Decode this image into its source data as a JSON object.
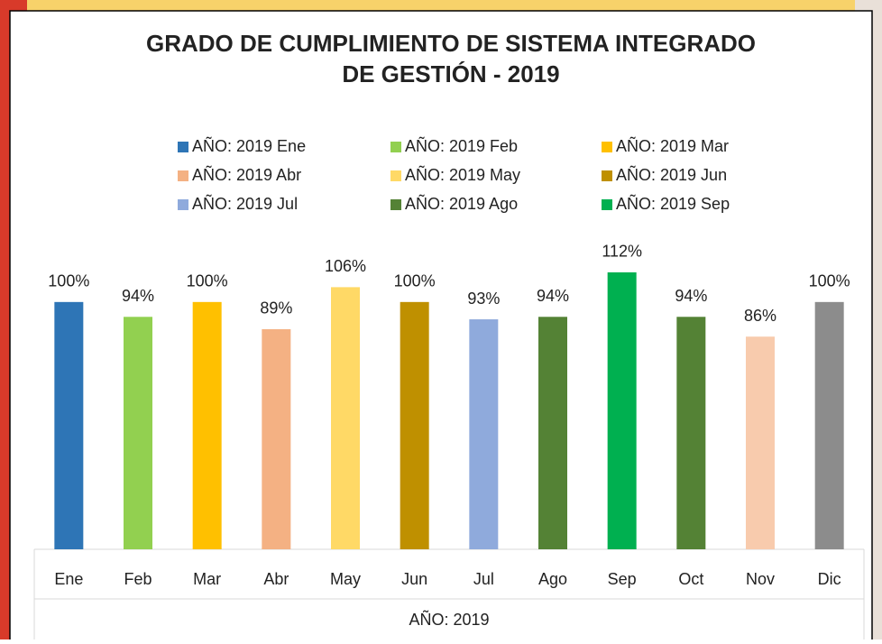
{
  "chart_data": {
    "type": "bar",
    "title": [
      "GRADO DE CUMPLIMIENTO DE SISTEMA INTEGRADO",
      "DE GESTIÓN - 2019"
    ],
    "categories": [
      "Ene",
      "Feb",
      "Mar",
      "Abr",
      "May",
      "Jun",
      "Jul",
      "Ago",
      "Sep",
      "Oct",
      "Nov",
      "Dic"
    ],
    "values": [
      100,
      94,
      100,
      89,
      106,
      100,
      93,
      94,
      112,
      94,
      86,
      100
    ],
    "value_labels": [
      "100%",
      "94%",
      "100%",
      "89%",
      "106%",
      "100%",
      "93%",
      "94%",
      "112%",
      "94%",
      "86%",
      "100%"
    ],
    "colors": [
      "#2e75b6",
      "#92d050",
      "#ffc000",
      "#f4b183",
      "#ffd966",
      "#bf9000",
      "#8faadc",
      "#548235",
      "#00b050",
      "#548235",
      "#f8cbad",
      "#8c8c8c"
    ],
    "legend": [
      "AÑO: 2019 Ene",
      "AÑO: 2019 Feb",
      "AÑO: 2019 Mar",
      "AÑO: 2019 Abr",
      "AÑO: 2019 May",
      "AÑO: 2019 Jun",
      "AÑO: 2019 Jul",
      "AÑO: 2019 Ago",
      "AÑO: 2019 Sep"
    ],
    "xlabel": "AÑO: 2019",
    "ylim": [
      0,
      120
    ]
  }
}
